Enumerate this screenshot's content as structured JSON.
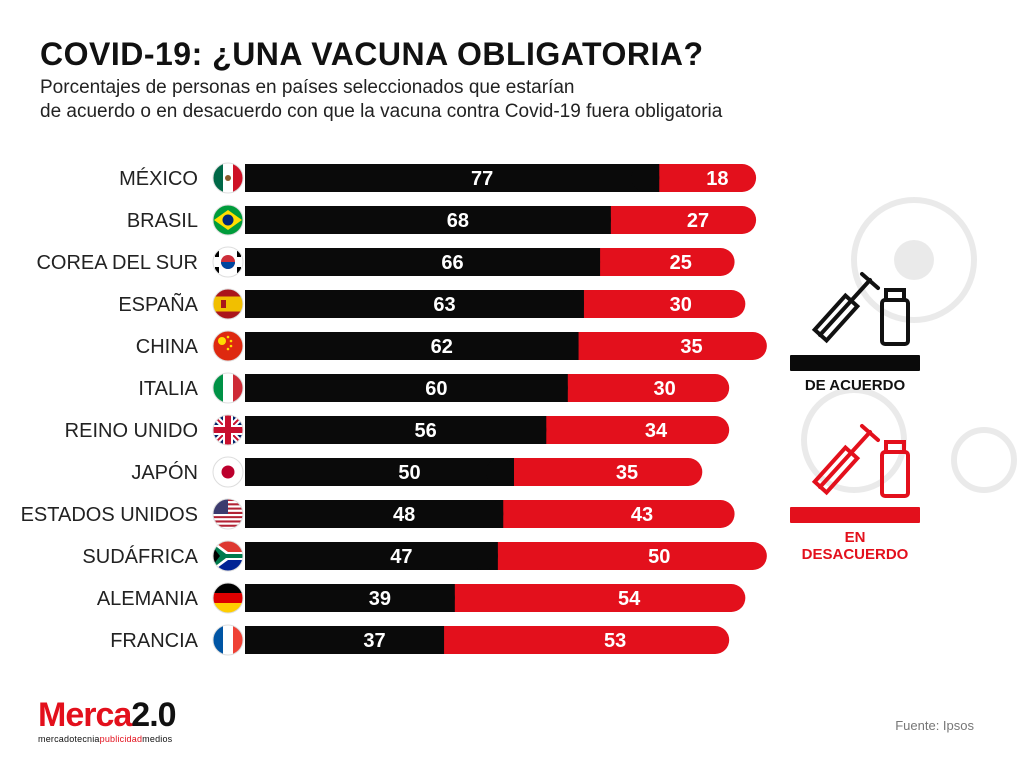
{
  "title": "COVID-19: ¿UNA VACUNA OBLIGATORIA?",
  "subtitle_lines": [
    "Porcentajes de personas en países seleccionados que estarían",
    "de acuerdo o en desacuerdo con que la vacuna contra Covid-19 fuera obligatoria"
  ],
  "legend": {
    "agree_label": "DE ACUERDO",
    "disagree_label": "EN DESACUERDO"
  },
  "colors": {
    "agree": "#0a0a0a",
    "disagree": "#e3101c",
    "text": "#111111"
  },
  "logo": {
    "brand_a": "Merca",
    "brand_b": "2.0",
    "tag_a": "mercadotecnia",
    "tag_b": "publicidad",
    "tag_c": "medios"
  },
  "source": "Fuente: Ipsos",
  "chart_data": {
    "type": "bar",
    "orientation": "horizontal",
    "stacked": true,
    "categories": [
      "MÉXICO",
      "BRASIL",
      "COREA DEL SUR",
      "ESPAÑA",
      "CHINA",
      "ITALIA",
      "REINO UNIDO",
      "JAPÓN",
      "ESTADOS UNIDOS",
      "SUDÁFRICA",
      "ALEMANIA",
      "FRANCIA"
    ],
    "flag_icons": [
      "mexico-flag",
      "brazil-flag",
      "south-korea-flag",
      "spain-flag",
      "china-flag",
      "italy-flag",
      "uk-flag",
      "japan-flag",
      "usa-flag",
      "south-africa-flag",
      "germany-flag",
      "france-flag"
    ],
    "series": [
      {
        "name": "De acuerdo",
        "values": [
          77,
          68,
          66,
          63,
          62,
          60,
          56,
          50,
          48,
          47,
          39,
          37
        ]
      },
      {
        "name": "En desacuerdo",
        "values": [
          18,
          27,
          25,
          30,
          35,
          30,
          34,
          35,
          43,
          50,
          54,
          53
        ]
      }
    ],
    "title": "COVID-19: ¿UNA VACUNA OBLIGATORIA?",
    "xlabel": "",
    "ylabel": "",
    "xlim": [
      0,
      100
    ]
  }
}
